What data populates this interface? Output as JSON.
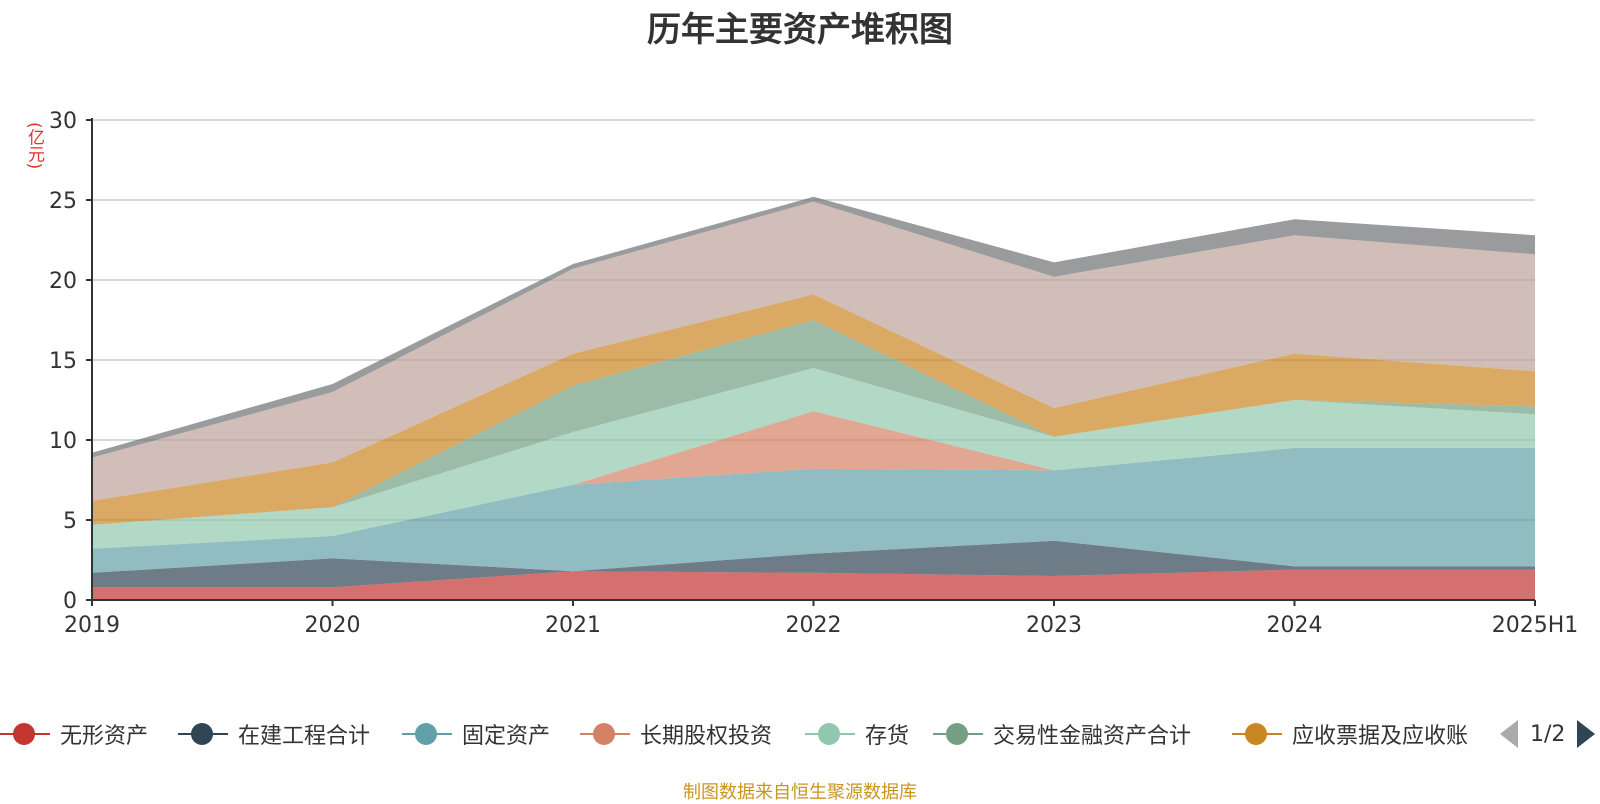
{
  "chart_data": {
    "type": "area",
    "title": "历年主要资产堆积图",
    "unit_label": "(亿元)",
    "categories": [
      "2019",
      "2020",
      "2021",
      "2022",
      "2023",
      "2024",
      "2025H1"
    ],
    "ylim": [
      0,
      30
    ],
    "yticks": [
      0,
      5,
      10,
      15,
      20,
      25,
      30
    ],
    "grid": true,
    "legend_position": "bottom",
    "series": [
      {
        "name": "无形资产",
        "color": "#c23531",
        "values": [
          0.8,
          0.8,
          1.8,
          1.7,
          1.5,
          1.9,
          1.9
        ]
      },
      {
        "name": "在建工程合计",
        "color": "#2f4554",
        "values": [
          0.9,
          1.8,
          0.0,
          1.2,
          2.2,
          0.2,
          0.2
        ]
      },
      {
        "name": "固定资产",
        "color": "#61a0a8",
        "values": [
          1.5,
          1.4,
          5.4,
          5.3,
          4.4,
          7.4,
          7.4
        ]
      },
      {
        "name": "长期股权投资",
        "color": "#d48265",
        "values": [
          0.0,
          0.0,
          0.0,
          3.6,
          0.0,
          0.0,
          0.0
        ]
      },
      {
        "name": "存货",
        "color": "#91c7ae",
        "values": [
          1.5,
          1.8,
          3.3,
          2.7,
          2.1,
          3.0,
          2.1
        ]
      },
      {
        "name": "交易性金融资产合计",
        "color": "#749f83",
        "values": [
          0.0,
          0.0,
          2.9,
          3.0,
          0.0,
          0.0,
          0.5
        ]
      },
      {
        "name": "应收票据及应收账",
        "color": "#ca8622",
        "values": [
          1.5,
          2.8,
          2.0,
          1.6,
          1.8,
          2.9,
          2.2
        ]
      },
      {
        "name": "",
        "color": "#bda29a",
        "values": [
          2.7,
          4.4,
          5.3,
          5.8,
          8.2,
          7.4,
          7.3
        ]
      },
      {
        "name": "",
        "color": "#6e7074",
        "values": [
          0.3,
          0.5,
          0.3,
          0.3,
          0.9,
          1.0,
          1.2
        ]
      }
    ]
  },
  "legend": {
    "page": "1/2"
  },
  "source_note": "制图数据来自恒生聚源数据库"
}
